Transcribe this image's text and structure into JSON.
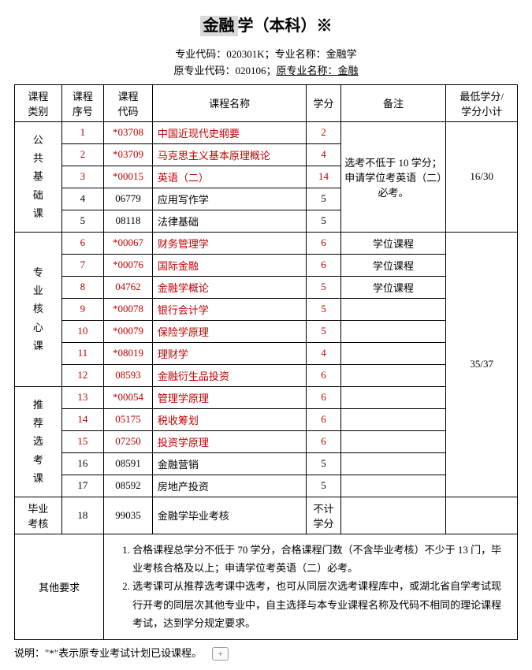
{
  "title_prefix_hl": "金融",
  "title_rest": "学（本科）※",
  "meta_line1": "专业代码：020301K；专业名称：金融学",
  "meta_line2_a": "原专业代码：020106；",
  "meta_line2_u": "原专业名称：金融",
  "headers": {
    "category": "课程\n类别",
    "seq": "课程\n序号",
    "code": "课程\n代码",
    "name": "课程名称",
    "credit": "学分",
    "remark": "备注",
    "min": "最低学分/\n学分小计"
  },
  "colwidths": [
    "58",
    "52",
    "60",
    "190",
    "42",
    "130",
    "88"
  ],
  "groups": [
    {
      "cat": "公\n共\n基\n础\n课",
      "min": "16/30",
      "remark_shared": "选考不低于 10 学分；申请学位考英语（二）必考。",
      "rows": [
        {
          "seq": "1",
          "code": "*03708",
          "name": "中国近现代史纲要",
          "credit": "2",
          "red": true
        },
        {
          "seq": "2",
          "code": "*03709",
          "name": "马克思主义基本原理概论",
          "credit": "4",
          "red": true
        },
        {
          "seq": "3",
          "code": "*00015",
          "name": "英语（二）",
          "credit": "14",
          "red": true
        },
        {
          "seq": "4",
          "code": "06779",
          "name": "应用写作学",
          "credit": "5",
          "red": false
        },
        {
          "seq": "5",
          "code": "08118",
          "name": "法律基础",
          "credit": "5",
          "red": false
        }
      ]
    },
    {
      "cat": "专\n业\n核\n心\n课",
      "min": "35/37",
      "rows": [
        {
          "seq": "6",
          "code": "*00067",
          "name": "财务管理学",
          "credit": "6",
          "remark": "学位课程",
          "red": true
        },
        {
          "seq": "7",
          "code": "*00076",
          "name": "国际金融",
          "credit": "6",
          "remark": "学位课程",
          "red": true
        },
        {
          "seq": "8",
          "code": "04762",
          "name": "金融学概论",
          "credit": "5",
          "remark": "学位课程",
          "red": true
        },
        {
          "seq": "9",
          "code": "*00078",
          "name": "银行会计学",
          "credit": "5",
          "remark": "",
          "red": true
        },
        {
          "seq": "10",
          "code": "*00079",
          "name": "保险学原理",
          "credit": "5",
          "remark": "",
          "red": true
        },
        {
          "seq": "11",
          "code": "*08019",
          "name": "理财学",
          "credit": "4",
          "remark": "",
          "red": true
        },
        {
          "seq": "12",
          "code": "08593",
          "name": "金融衍生品投资",
          "credit": "6",
          "remark": "",
          "red": true
        }
      ]
    },
    {
      "cat": "推\n荐\n选\n考\n课",
      "min": "",
      "rows": [
        {
          "seq": "13",
          "code": "*00054",
          "name": "管理学原理",
          "credit": "6",
          "remark": "",
          "red": true
        },
        {
          "seq": "14",
          "code": "05175",
          "name": "税收筹划",
          "credit": "6",
          "remark": "",
          "red": true
        },
        {
          "seq": "15",
          "code": "07250",
          "name": "投资学原理",
          "credit": "6",
          "remark": "",
          "red": true
        },
        {
          "seq": "16",
          "code": "08591",
          "name": "金融营销",
          "credit": "5",
          "remark": "",
          "red": false
        },
        {
          "seq": "17",
          "code": "08592",
          "name": "房地产投资",
          "credit": "5",
          "remark": "",
          "red": false
        }
      ]
    }
  ],
  "exam": {
    "cat": "毕业\n考核",
    "seq": "18",
    "code": "99035",
    "name": "金融学毕业考核",
    "credit": "不计\n学分",
    "remark": "",
    "min": ""
  },
  "other_label": "其他要求",
  "other_notes": [
    "合格课程总学分不低于 70 学分，合格课程门数（不含毕业考核）不少于 13 门，毕业考核合格及以上；申请学位考英语（二）必考。",
    "选考课可从推荐选考课中选考，也可从同层次选考课程库中，或湖北省自学考试现行开考的同层次其他专业中，自主选择与本专业课程名称及代码不相同的理论课程考试，达到学分规定要求。"
  ],
  "footer_label": "说明：\"*\"表示原专业考试计划已设课程。",
  "plus": "+"
}
